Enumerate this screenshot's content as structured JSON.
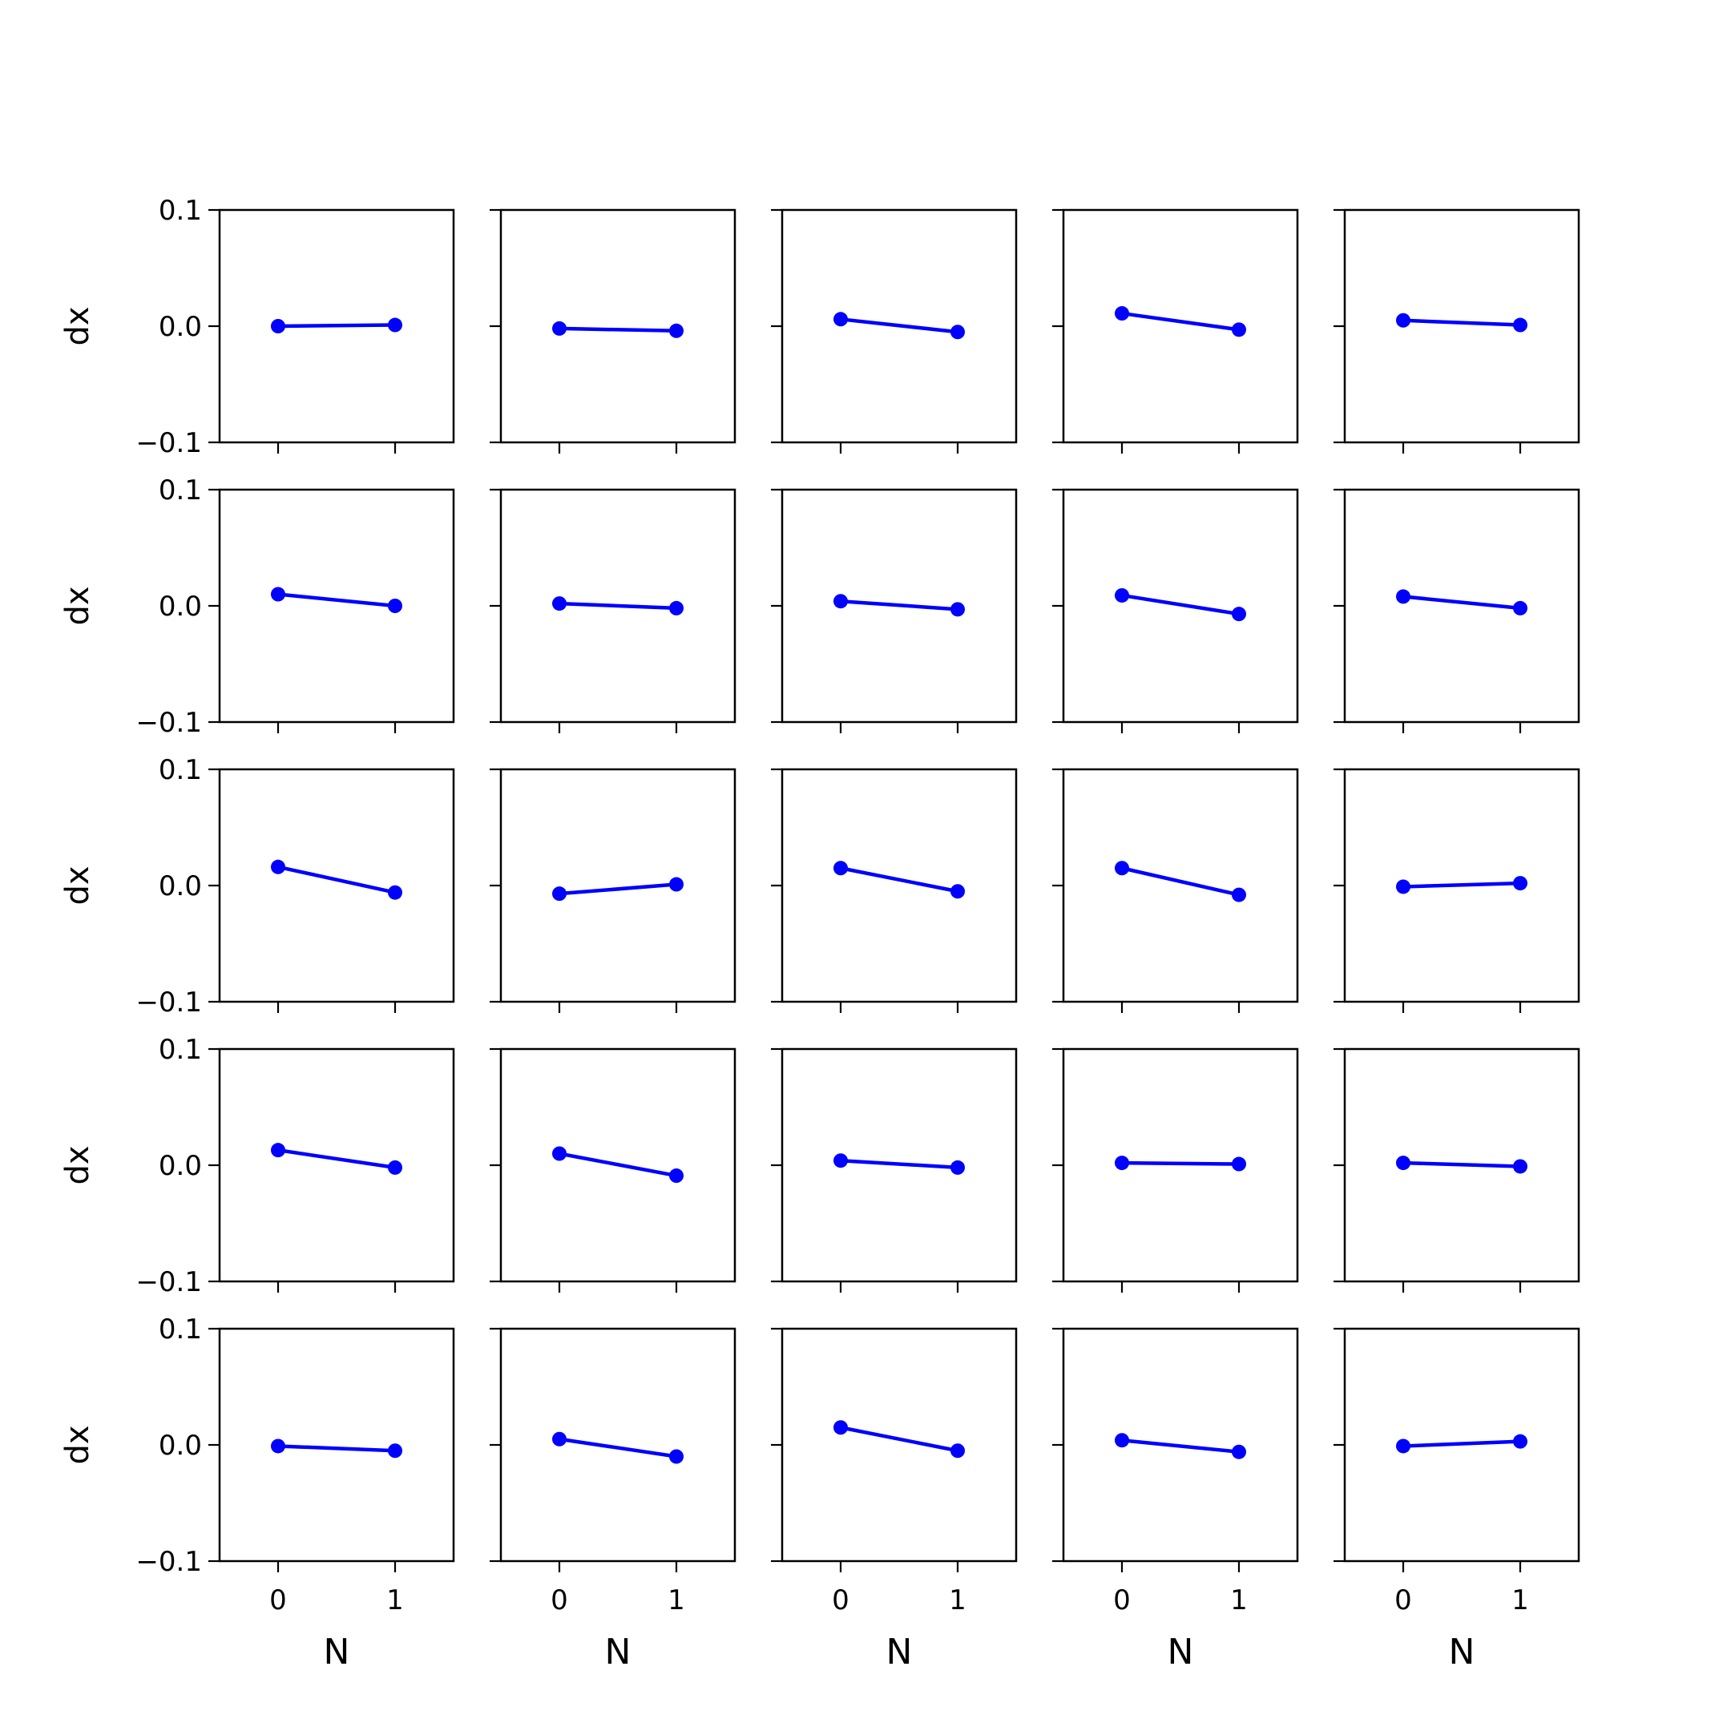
{
  "figure": {
    "background": "#ffffff",
    "line_color": "#0000ff",
    "axes_color": "#000000"
  },
  "chart_data": {
    "type": "line",
    "layout": "grid 5 rows x 5 columns, shared x and y axes",
    "grid": false,
    "xlabel": "N",
    "ylabel": "dx",
    "x": [
      0,
      1
    ],
    "xlim": [
      -0.5,
      1.5
    ],
    "ylim": [
      -0.1,
      0.1
    ],
    "xticks": [
      0,
      1
    ],
    "xtick_labels": [
      "0",
      "1"
    ],
    "yticks": [
      -0.1,
      0.0,
      0.1
    ],
    "ytick_labels": [
      "−0.1",
      "0.0",
      "0.1"
    ],
    "marker": "circle",
    "panels": [
      [
        [
          0.0,
          0.001
        ],
        [
          -0.002,
          -0.004
        ],
        [
          0.006,
          -0.005
        ],
        [
          0.011,
          -0.003
        ],
        [
          0.005,
          0.001
        ]
      ],
      [
        [
          0.01,
          0.0
        ],
        [
          0.002,
          -0.002
        ],
        [
          0.004,
          -0.003
        ],
        [
          0.009,
          -0.007
        ],
        [
          0.008,
          -0.002
        ]
      ],
      [
        [
          0.016,
          -0.006
        ],
        [
          -0.007,
          0.001
        ],
        [
          0.015,
          -0.005
        ],
        [
          0.015,
          -0.008
        ],
        [
          -0.001,
          0.002
        ]
      ],
      [
        [
          0.013,
          -0.002
        ],
        [
          0.01,
          -0.009
        ],
        [
          0.004,
          -0.002
        ],
        [
          0.002,
          0.001
        ],
        [
          0.002,
          -0.001
        ]
      ],
      [
        [
          -0.001,
          -0.005
        ],
        [
          0.005,
          -0.01
        ],
        [
          0.015,
          -0.005
        ],
        [
          0.004,
          -0.006
        ],
        [
          -0.001,
          0.003
        ]
      ]
    ]
  }
}
